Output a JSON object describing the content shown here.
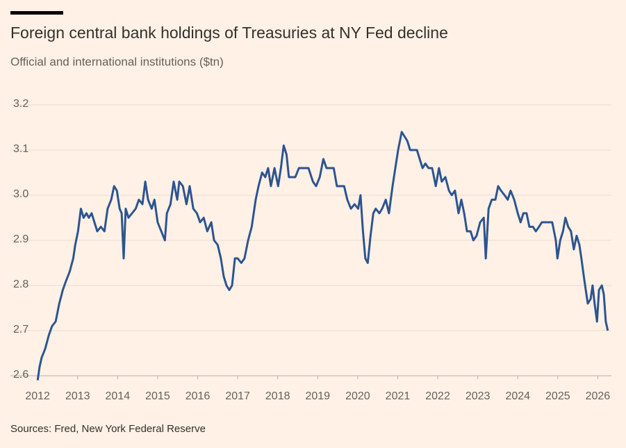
{
  "chart_data": {
    "type": "line",
    "title": "Foreign central bank holdings of Treasuries at NY Fed decline",
    "subtitle": "Official and international institutions ($tn)",
    "source": "Sources: Fred, New York Federal Reserve",
    "color": "#2c5491",
    "grid": true,
    "xlim": [
      2011.32,
      2026.34
    ],
    "ylim": [
      2.6,
      3.2
    ],
    "xticks": [
      2012,
      2013,
      2014,
      2015,
      2016,
      2017,
      2018,
      2019,
      2020,
      2021,
      2022,
      2023,
      2024,
      2025,
      2026
    ],
    "yticks": [
      2.6,
      2.7,
      2.8,
      2.9,
      {
        "value": 3,
        "label": "3.0"
      },
      3.1,
      3.2
    ],
    "x": [
      2012.0,
      2012.05,
      2012.1,
      2012.19,
      2012.28,
      2012.36,
      2012.45,
      2012.54,
      2012.63,
      2012.71,
      2012.8,
      2012.89,
      2012.94,
      2013.01,
      2013.08,
      2013.15,
      2013.22,
      2013.28,
      2013.35,
      2013.42,
      2013.49,
      2013.58,
      2013.67,
      2013.75,
      2013.84,
      2013.91,
      2013.98,
      2014.05,
      2014.1,
      2014.15,
      2014.2,
      2014.27,
      2014.36,
      2014.45,
      2014.53,
      2014.62,
      2014.69,
      2014.76,
      2014.85,
      2014.92,
      2015.0,
      2015.09,
      2015.18,
      2015.23,
      2015.32,
      2015.4,
      2015.49,
      2015.54,
      2015.63,
      2015.72,
      2015.8,
      2015.89,
      2015.98,
      2016.06,
      2016.15,
      2016.24,
      2016.34,
      2016.41,
      2016.5,
      2016.58,
      2016.65,
      2016.72,
      2016.79,
      2016.86,
      2016.93,
      2017.0,
      2017.09,
      2017.17,
      2017.26,
      2017.35,
      2017.45,
      2017.52,
      2017.61,
      2017.69,
      2017.76,
      2017.83,
      2017.92,
      2018.01,
      2018.08,
      2018.15,
      2018.22,
      2018.28,
      2018.35,
      2018.44,
      2018.53,
      2018.61,
      2018.7,
      2018.77,
      2018.88,
      2018.96,
      2019.05,
      2019.14,
      2019.22,
      2019.31,
      2019.4,
      2019.48,
      2019.57,
      2019.66,
      2019.74,
      2019.83,
      2019.92,
      2020.01,
      2020.07,
      2020.13,
      2020.19,
      2020.25,
      2020.32,
      2020.39,
      2020.45,
      2020.54,
      2020.61,
      2020.7,
      2020.78,
      2020.87,
      2020.94,
      2021.01,
      2021.1,
      2021.17,
      2021.24,
      2021.31,
      2021.39,
      2021.48,
      2021.55,
      2021.62,
      2021.69,
      2021.77,
      2021.86,
      2021.95,
      2022.03,
      2022.1,
      2022.19,
      2022.28,
      2022.35,
      2022.43,
      2022.52,
      2022.59,
      2022.66,
      2022.73,
      2022.82,
      2022.89,
      2022.97,
      2023.06,
      2023.15,
      2023.2,
      2023.27,
      2023.35,
      2023.44,
      2023.51,
      2023.58,
      2023.67,
      2023.75,
      2023.82,
      2023.91,
      2024.0,
      2024.07,
      2024.14,
      2024.22,
      2024.29,
      2024.38,
      2024.45,
      2024.53,
      2024.6,
      2024.71,
      2024.8,
      2024.86,
      2024.95,
      2024.99,
      2025.06,
      2025.13,
      2025.19,
      2025.26,
      2025.33,
      2025.4,
      2025.47,
      2025.54,
      2025.59,
      2025.65,
      2025.7,
      2025.75,
      2025.82,
      2025.87,
      2025.92,
      2025.98,
      2026.03,
      2026.1,
      2026.15,
      2026.2,
      2026.25
    ],
    "values": [
      2.59,
      2.62,
      2.64,
      2.66,
      2.69,
      2.71,
      2.72,
      2.76,
      2.79,
      2.81,
      2.83,
      2.86,
      2.89,
      2.92,
      2.97,
      2.95,
      2.96,
      2.95,
      2.96,
      2.94,
      2.92,
      2.93,
      2.92,
      2.97,
      2.99,
      3.02,
      3.01,
      2.97,
      2.96,
      2.86,
      2.97,
      2.95,
      2.96,
      2.97,
      2.99,
      2.98,
      3.03,
      2.99,
      2.97,
      2.99,
      2.94,
      2.92,
      2.9,
      2.96,
      2.98,
      3.03,
      2.99,
      3.03,
      3.02,
      2.98,
      3.02,
      2.97,
      2.96,
      2.94,
      2.95,
      2.92,
      2.94,
      2.9,
      2.89,
      2.86,
      2.82,
      2.8,
      2.79,
      2.8,
      2.86,
      2.86,
      2.85,
      2.86,
      2.9,
      2.93,
      2.99,
      3.02,
      3.05,
      3.04,
      3.06,
      3.02,
      3.06,
      3.02,
      3.06,
      3.11,
      3.09,
      3.04,
      3.04,
      3.04,
      3.06,
      3.06,
      3.06,
      3.06,
      3.03,
      3.02,
      3.04,
      3.08,
      3.06,
      3.06,
      3.06,
      3.02,
      3.02,
      3.02,
      2.99,
      2.97,
      2.98,
      2.97,
      3.0,
      2.92,
      2.86,
      2.85,
      2.91,
      2.96,
      2.97,
      2.96,
      2.97,
      2.99,
      2.96,
      3.02,
      3.06,
      3.1,
      3.14,
      3.13,
      3.12,
      3.1,
      3.1,
      3.1,
      3.08,
      3.06,
      3.07,
      3.06,
      3.06,
      3.02,
      3.06,
      3.03,
      3.04,
      3.01,
      3.0,
      3.01,
      2.96,
      2.99,
      2.96,
      2.92,
      2.92,
      2.9,
      2.91,
      2.94,
      2.95,
      2.86,
      2.97,
      2.99,
      2.99,
      3.02,
      3.01,
      3.0,
      2.99,
      3.01,
      2.99,
      2.96,
      2.94,
      2.96,
      2.96,
      2.93,
      2.93,
      2.92,
      2.93,
      2.94,
      2.94,
      2.94,
      2.94,
      2.9,
      2.86,
      2.9,
      2.92,
      2.95,
      2.93,
      2.92,
      2.88,
      2.91,
      2.89,
      2.86,
      2.82,
      2.79,
      2.76,
      2.77,
      2.8,
      2.76,
      2.72,
      2.79,
      2.8,
      2.78,
      2.72,
      2.7
    ]
  }
}
